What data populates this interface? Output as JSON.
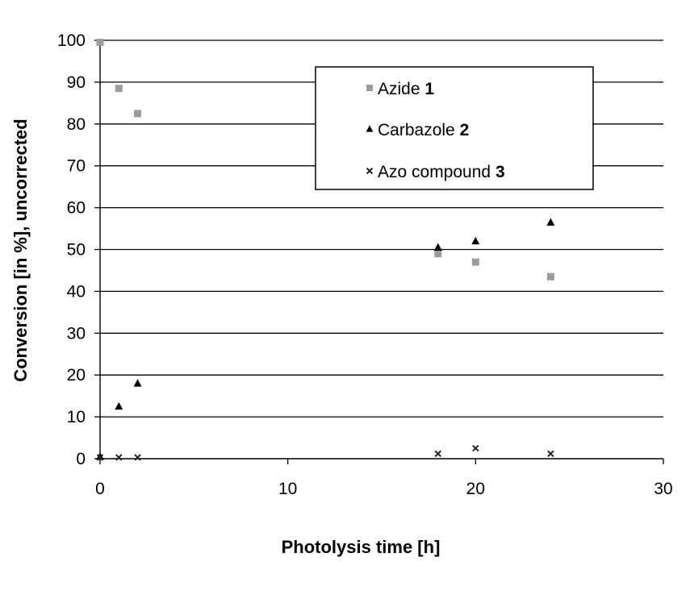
{
  "chart_data": {
    "type": "scatter",
    "xlabel": "Photolysis time [h]",
    "ylabel": "Conversion [in %], uncorrected",
    "xlim": [
      0,
      30
    ],
    "ylim": [
      0,
      100
    ],
    "xticks": [
      0,
      10,
      20,
      30
    ],
    "yticks": [
      0,
      10,
      20,
      30,
      40,
      50,
      60,
      70,
      80,
      90,
      100
    ],
    "grid": "horizontal",
    "legend_position": "top-right",
    "series": [
      {
        "name": "Azide",
        "name_number": "1",
        "marker": "square",
        "color": "#9b9b9b",
        "x": [
          0,
          1,
          2,
          18,
          20,
          24
        ],
        "y": [
          99.5,
          88.5,
          82.5,
          49,
          47,
          43.5
        ]
      },
      {
        "name": "Carbazole",
        "name_number": "2",
        "marker": "triangle",
        "color": "#000000",
        "x": [
          0,
          1,
          2,
          18,
          20,
          24
        ],
        "y": [
          0.5,
          12.5,
          18,
          50.5,
          52,
          56.5
        ]
      },
      {
        "name": "Azo compound",
        "name_number": "3",
        "marker": "x",
        "color": "#222222",
        "x": [
          0,
          1,
          2,
          18,
          20,
          24
        ],
        "y": [
          0.3,
          0.3,
          0.3,
          1.2,
          2.5,
          1.2
        ]
      }
    ]
  }
}
